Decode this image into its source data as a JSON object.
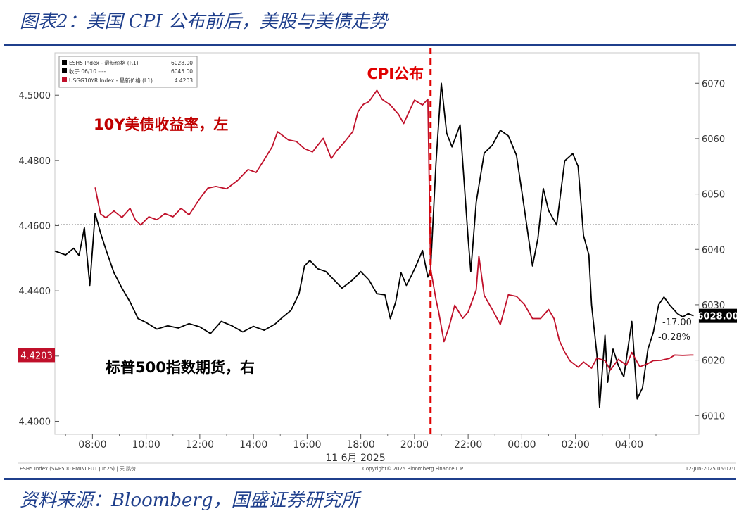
{
  "figure_title": "图表2：美国 CPI 公布前后，美股与美债走势",
  "source_note": "资料来源：Bloomberg，国盛证券研究所",
  "chart_data": {
    "type": "line",
    "x_ticks": [
      "08:00",
      "10:00",
      "12:00",
      "14:00",
      "16:00",
      "18:00",
      "20:00",
      "22:00",
      "00:00",
      "02:00",
      "04:00"
    ],
    "x_date_label": "11 6月 2025",
    "left_axis": {
      "ticks": [
        "4.5000",
        "4.4800",
        "4.4600",
        "4.4400",
        "4.4200",
        "4.4000"
      ],
      "range": [
        4.396,
        4.513
      ]
    },
    "right_axis": {
      "ticks": [
        "6070",
        "6060",
        "6050",
        "6040",
        "6030",
        "6020",
        "6010"
      ],
      "range": [
        6006.6,
        6075.5
      ]
    },
    "x_range_hours": [
      6.6,
      30.6
    ],
    "reference_line_left": 4.4603,
    "event": {
      "label": "CPI公布",
      "time_hours": 20.6,
      "color": "#e00000"
    },
    "annotations": {
      "yield_label": "10Y美债收益率，左",
      "futures_label": "标普500指数期货，右",
      "change_abs": "-17.00",
      "change_pct": "-0.28%",
      "last_right_tag": "6028.00",
      "last_left_tag": "4.4203"
    },
    "legend": [
      {
        "text": "ESH5 Index - 最新价格 (R1)",
        "value": "6028.00",
        "color": "#000000"
      },
      {
        "text": "收于 06/10 ----",
        "value": "6045.00",
        "color": "#000000"
      },
      {
        "text": "USGG10YR Index - 最新价格 (L1)",
        "value": "4.4203",
        "color": "#c0102a"
      }
    ],
    "footer_left": "ESH5 Index (S&P500 EMINI FUT Jun25) | 天 跳价",
    "footer_center": "Copyright© 2025 Bloomberg Finance L.P.",
    "footer_right": "12-Jun-2025 06:07:1",
    "series": [
      {
        "name": "ESH5 Index - 最新价格",
        "axis": "right",
        "color": "#000000",
        "points": [
          [
            6.6,
            6039.7
          ],
          [
            7.0,
            6039.0
          ],
          [
            7.3,
            6040.2
          ],
          [
            7.5,
            6038.9
          ],
          [
            7.7,
            6043.9
          ],
          [
            7.9,
            6033.5
          ],
          [
            8.1,
            6046.5
          ],
          [
            8.3,
            6043.0
          ],
          [
            8.5,
            6040.0
          ],
          [
            8.8,
            6035.8
          ],
          [
            9.1,
            6033.0
          ],
          [
            9.4,
            6030.5
          ],
          [
            9.7,
            6027.5
          ],
          [
            10.0,
            6026.8
          ],
          [
            10.4,
            6025.6
          ],
          [
            10.8,
            6026.2
          ],
          [
            11.2,
            6025.8
          ],
          [
            11.6,
            6026.6
          ],
          [
            12.0,
            6026.0
          ],
          [
            12.4,
            6024.8
          ],
          [
            12.8,
            6027.0
          ],
          [
            13.2,
            6026.2
          ],
          [
            13.6,
            6025.1
          ],
          [
            14.0,
            6026.1
          ],
          [
            14.4,
            6025.4
          ],
          [
            14.8,
            6026.5
          ],
          [
            15.1,
            6027.8
          ],
          [
            15.4,
            6029.0
          ],
          [
            15.7,
            6032.0
          ],
          [
            15.9,
            6037.0
          ],
          [
            16.1,
            6038.0
          ],
          [
            16.4,
            6036.5
          ],
          [
            16.7,
            6036.0
          ],
          [
            17.0,
            6034.5
          ],
          [
            17.3,
            6033.0
          ],
          [
            17.7,
            6034.5
          ],
          [
            18.0,
            6036.0
          ],
          [
            18.3,
            6034.5
          ],
          [
            18.6,
            6032.0
          ],
          [
            18.9,
            6031.8
          ],
          [
            19.1,
            6027.5
          ],
          [
            19.3,
            6030.5
          ],
          [
            19.5,
            6035.8
          ],
          [
            19.7,
            6033.5
          ],
          [
            19.9,
            6035.4
          ],
          [
            20.1,
            6037.5
          ],
          [
            20.3,
            6039.8
          ],
          [
            20.5,
            6035.0
          ],
          [
            20.6,
            6036.4
          ],
          [
            20.8,
            6055.5
          ],
          [
            21.0,
            6070.0
          ],
          [
            21.2,
            6061.0
          ],
          [
            21.4,
            6058.5
          ],
          [
            21.7,
            6062.5
          ],
          [
            22.0,
            6042.0
          ],
          [
            22.1,
            6036.0
          ],
          [
            22.3,
            6048.5
          ],
          [
            22.6,
            6057.4
          ],
          [
            22.9,
            6058.8
          ],
          [
            23.2,
            6061.5
          ],
          [
            23.5,
            6060.5
          ],
          [
            23.8,
            6057.0
          ],
          [
            24.1,
            6047.2
          ],
          [
            24.4,
            6037.0
          ],
          [
            24.6,
            6042.0
          ],
          [
            24.8,
            6051.0
          ],
          [
            25.0,
            6047.0
          ],
          [
            25.3,
            6044.4
          ],
          [
            25.6,
            6056.0
          ],
          [
            25.9,
            6057.3
          ],
          [
            26.1,
            6055.0
          ],
          [
            26.3,
            6042.5
          ],
          [
            26.5,
            6039.0
          ],
          [
            26.6,
            6030.0
          ],
          [
            26.8,
            6021.0
          ],
          [
            26.9,
            6011.5
          ],
          [
            27.1,
            6024.5
          ],
          [
            27.2,
            6016.0
          ],
          [
            27.4,
            6022.0
          ],
          [
            27.6,
            6019.0
          ],
          [
            27.8,
            6017.0
          ],
          [
            28.1,
            6027.0
          ],
          [
            28.3,
            6013.0
          ],
          [
            28.5,
            6015.0
          ],
          [
            28.7,
            6022.0
          ],
          [
            28.9,
            6025.0
          ],
          [
            29.1,
            6030.0
          ],
          [
            29.3,
            6031.4
          ],
          [
            29.5,
            6030.0
          ],
          [
            29.8,
            6028.4
          ],
          [
            30.0,
            6027.8
          ],
          [
            30.2,
            6028.4
          ],
          [
            30.4,
            6028.0
          ]
        ]
      },
      {
        "name": "USGG10YR Index - 最新价格",
        "axis": "left",
        "color": "#c0102a",
        "points": [
          [
            8.1,
            4.4717
          ],
          [
            8.3,
            4.4636
          ],
          [
            8.5,
            4.4624
          ],
          [
            8.8,
            4.4645
          ],
          [
            9.1,
            4.4625
          ],
          [
            9.4,
            4.4653
          ],
          [
            9.6,
            4.4617
          ],
          [
            9.8,
            4.4602
          ],
          [
            10.1,
            4.4627
          ],
          [
            10.4,
            4.4618
          ],
          [
            10.7,
            4.4637
          ],
          [
            11.0,
            4.4627
          ],
          [
            11.3,
            4.4653
          ],
          [
            11.6,
            4.4633
          ],
          [
            12.0,
            4.4683
          ],
          [
            12.3,
            4.4715
          ],
          [
            12.6,
            4.472
          ],
          [
            13.0,
            4.4713
          ],
          [
            13.4,
            4.4738
          ],
          [
            13.8,
            4.4772
          ],
          [
            14.1,
            4.4763
          ],
          [
            14.4,
            4.4802
          ],
          [
            14.7,
            4.4842
          ],
          [
            14.9,
            4.4888
          ],
          [
            15.3,
            4.4863
          ],
          [
            15.6,
            4.4858
          ],
          [
            15.9,
            4.4836
          ],
          [
            16.2,
            4.4826
          ],
          [
            16.6,
            4.4868
          ],
          [
            16.9,
            4.4806
          ],
          [
            17.1,
            4.4829
          ],
          [
            17.4,
            4.4857
          ],
          [
            17.7,
            4.4888
          ],
          [
            17.9,
            4.495
          ],
          [
            18.1,
            4.4972
          ],
          [
            18.3,
            4.498
          ],
          [
            18.6,
            4.5015
          ],
          [
            18.8,
            4.4987
          ],
          [
            19.1,
            4.497
          ],
          [
            19.4,
            4.4942
          ],
          [
            19.6,
            4.4913
          ],
          [
            19.8,
            4.495
          ],
          [
            20.0,
            4.4985
          ],
          [
            20.3,
            4.497
          ],
          [
            20.5,
            4.4988
          ],
          [
            20.6,
            4.4468
          ],
          [
            20.8,
            4.4374
          ],
          [
            20.9,
            4.4336
          ],
          [
            21.1,
            4.4244
          ],
          [
            21.3,
            4.4292
          ],
          [
            21.5,
            4.4356
          ],
          [
            21.8,
            4.4316
          ],
          [
            22.0,
            4.4335
          ],
          [
            22.3,
            4.4403
          ],
          [
            22.4,
            4.4507
          ],
          [
            22.6,
            4.4386
          ],
          [
            22.9,
            4.4343
          ],
          [
            23.2,
            4.4297
          ],
          [
            23.5,
            4.4388
          ],
          [
            23.8,
            4.4383
          ],
          [
            24.1,
            4.4358
          ],
          [
            24.4,
            4.4315
          ],
          [
            24.7,
            4.4315
          ],
          [
            25.0,
            4.4343
          ],
          [
            25.2,
            4.4315
          ],
          [
            25.4,
            4.4248
          ],
          [
            25.6,
            4.4212
          ],
          [
            25.8,
            4.4185
          ],
          [
            26.1,
            4.4166
          ],
          [
            26.3,
            4.4182
          ],
          [
            26.6,
            4.4163
          ],
          [
            26.8,
            4.4194
          ],
          [
            27.1,
            4.4186
          ],
          [
            27.3,
            4.4157
          ],
          [
            27.6,
            4.419
          ],
          [
            27.9,
            4.4172
          ],
          [
            28.1,
            4.4211
          ],
          [
            28.4,
            4.4167
          ],
          [
            28.7,
            4.4177
          ],
          [
            28.9,
            4.4186
          ],
          [
            29.2,
            4.4187
          ],
          [
            29.5,
            4.4193
          ],
          [
            29.7,
            4.4203
          ],
          [
            30.0,
            4.4202
          ],
          [
            30.3,
            4.4203
          ],
          [
            30.4,
            4.4203
          ]
        ]
      }
    ]
  }
}
